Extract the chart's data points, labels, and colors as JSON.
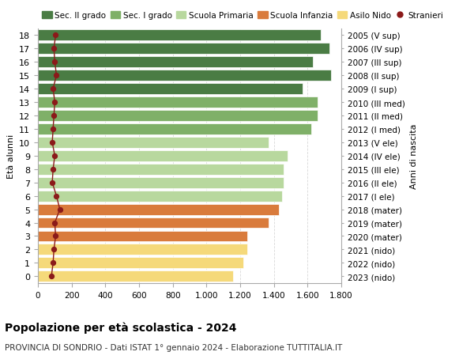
{
  "ages": [
    18,
    17,
    16,
    15,
    14,
    13,
    12,
    11,
    10,
    9,
    8,
    7,
    6,
    5,
    4,
    3,
    2,
    1,
    0
  ],
  "right_labels": [
    "2005 (V sup)",
    "2006 (IV sup)",
    "2007 (III sup)",
    "2008 (II sup)",
    "2009 (I sup)",
    "2010 (III med)",
    "2011 (II med)",
    "2012 (I med)",
    "2013 (V ele)",
    "2014 (IV ele)",
    "2015 (III ele)",
    "2016 (II ele)",
    "2017 (I ele)",
    "2018 (mater)",
    "2019 (mater)",
    "2020 (mater)",
    "2021 (nido)",
    "2022 (nido)",
    "2023 (nido)"
  ],
  "bar_values": [
    1680,
    1730,
    1630,
    1740,
    1570,
    1660,
    1660,
    1620,
    1370,
    1480,
    1460,
    1460,
    1450,
    1430,
    1370,
    1240,
    1240,
    1220,
    1160
  ],
  "stranieri_values": [
    105,
    95,
    100,
    110,
    90,
    100,
    95,
    90,
    85,
    100,
    90,
    85,
    110,
    130,
    100,
    105,
    95,
    90,
    80
  ],
  "bar_colors": [
    "#4a7c44",
    "#4a7c44",
    "#4a7c44",
    "#4a7c44",
    "#4a7c44",
    "#7fb068",
    "#7fb068",
    "#7fb068",
    "#b8d89e",
    "#b8d89e",
    "#b8d89e",
    "#b8d89e",
    "#b8d89e",
    "#d97b3c",
    "#d97b3c",
    "#d97b3c",
    "#f5d97a",
    "#f5d97a",
    "#f5d97a"
  ],
  "legend_labels": [
    "Sec. II grado",
    "Sec. I grado",
    "Scuola Primaria",
    "Scuola Infanzia",
    "Asilo Nido",
    "Stranieri"
  ],
  "legend_colors": [
    "#4a7c44",
    "#7fb068",
    "#b8d89e",
    "#d97b3c",
    "#f5d97a",
    "#8b1a1a"
  ],
  "stranieri_color": "#8b1a1a",
  "title": "Popolazione per età scolastica - 2024",
  "subtitle": "PROVINCIA DI SONDRIO - Dati ISTAT 1° gennaio 2024 - Elaborazione TUTTITALIA.IT",
  "ylabel_left": "Età alunni",
  "ylabel_right": "Anni di nascita",
  "xlim": [
    0,
    1800
  ],
  "xticks": [
    0,
    200,
    400,
    600,
    800,
    1000,
    1200,
    1400,
    1600,
    1800
  ],
  "background_color": "#ffffff",
  "grid_color": "#d8d8d8"
}
